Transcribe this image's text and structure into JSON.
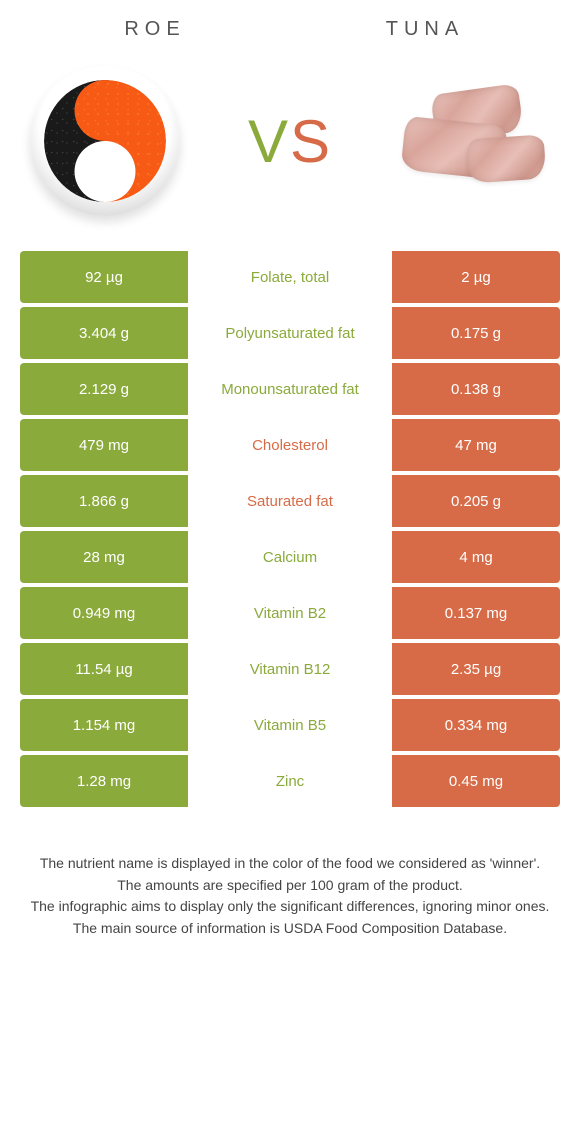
{
  "header": {
    "left_title": "Roe",
    "right_title": "Tuna",
    "vs_left_char": "V",
    "vs_right_char": "S"
  },
  "colors": {
    "green": "#8aaa3b",
    "orange": "#d76b47",
    "text": "#444444",
    "background": "#ffffff"
  },
  "table": {
    "left_bg": "#8aaa3b",
    "right_bg": "#d76b47",
    "rows": [
      {
        "left": "92 µg",
        "label": "Folate, total",
        "right": "2 µg",
        "winner": "green"
      },
      {
        "left": "3.404 g",
        "label": "Polyunsaturated fat",
        "right": "0.175 g",
        "winner": "green"
      },
      {
        "left": "2.129 g",
        "label": "Monounsaturated fat",
        "right": "0.138 g",
        "winner": "green"
      },
      {
        "left": "479 mg",
        "label": "Cholesterol",
        "right": "47 mg",
        "winner": "orange"
      },
      {
        "left": "1.866 g",
        "label": "Saturated fat",
        "right": "0.205 g",
        "winner": "orange"
      },
      {
        "left": "28 mg",
        "label": "Calcium",
        "right": "4 mg",
        "winner": "green"
      },
      {
        "left": "0.949 mg",
        "label": "Vitamin B2",
        "right": "0.137 mg",
        "winner": "green"
      },
      {
        "left": "11.54 µg",
        "label": "Vitamin B12",
        "right": "2.35 µg",
        "winner": "green"
      },
      {
        "left": "1.154 mg",
        "label": "Vitamin B5",
        "right": "0.334 mg",
        "winner": "green"
      },
      {
        "left": "1.28 mg",
        "label": "Zinc",
        "right": "0.45 mg",
        "winner": "green"
      }
    ]
  },
  "notes": {
    "line1": "The nutrient name is displayed in the color of the food we considered as 'winner'.",
    "line2": "The amounts are specified per 100 gram of the product.",
    "line3": "The infographic aims to display only the significant differences, ignoring minor ones.",
    "line4": "The main source of information is USDA Food Composition Database."
  }
}
